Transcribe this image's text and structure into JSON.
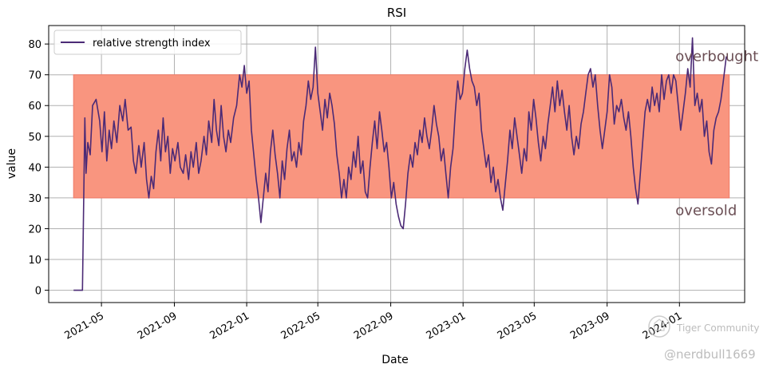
{
  "chart_data": {
    "type": "line",
    "title": "RSI",
    "xlabel": "Date",
    "ylabel": "value",
    "ylim": [
      -4,
      86
    ],
    "xlim": [
      "2021-02-01",
      "2024-04-20"
    ],
    "yticks": [
      0,
      10,
      20,
      30,
      40,
      50,
      60,
      70,
      80
    ],
    "xticks": [
      "2021-05",
      "2021-09",
      "2022-01",
      "2022-05",
      "2022-09",
      "2023-01",
      "2023-05",
      "2023-09",
      "2024-01"
    ],
    "grid": true,
    "legend": {
      "placement": "top-left",
      "entries": [
        "relative strength index"
      ]
    },
    "band": {
      "lower": 30,
      "upper": 70,
      "x_start": "2021-03-15",
      "x_end": "2024-03-25",
      "color": "#f9957f"
    },
    "annotations": [
      {
        "text": "overbought",
        "x": "2024-01-01",
        "y": 76
      },
      {
        "text": "oversold",
        "x": "2024-01-01",
        "y": 26
      }
    ],
    "series": [
      {
        "name": "relative strength index",
        "color": "#4b2a76",
        "points": [
          [
            "2021-03-15",
            0
          ],
          [
            "2021-03-30",
            0
          ],
          [
            "2021-04-03",
            56
          ],
          [
            "2021-04-05",
            38
          ],
          [
            "2021-04-08",
            48
          ],
          [
            "2021-04-12",
            44
          ],
          [
            "2021-04-16",
            60
          ],
          [
            "2021-04-22",
            62
          ],
          [
            "2021-04-28",
            55
          ],
          [
            "2021-05-02",
            45
          ],
          [
            "2021-05-06",
            58
          ],
          [
            "2021-05-10",
            42
          ],
          [
            "2021-05-14",
            52
          ],
          [
            "2021-05-18",
            46
          ],
          [
            "2021-05-22",
            55
          ],
          [
            "2021-05-27",
            48
          ],
          [
            "2021-06-01",
            60
          ],
          [
            "2021-06-06",
            55
          ],
          [
            "2021-06-10",
            62
          ],
          [
            "2021-06-15",
            52
          ],
          [
            "2021-06-20",
            53
          ],
          [
            "2021-06-24",
            42
          ],
          [
            "2021-06-28",
            38
          ],
          [
            "2021-07-03",
            47
          ],
          [
            "2021-07-07",
            40
          ],
          [
            "2021-07-12",
            48
          ],
          [
            "2021-07-16",
            36
          ],
          [
            "2021-07-20",
            30
          ],
          [
            "2021-07-24",
            37
          ],
          [
            "2021-07-28",
            33
          ],
          [
            "2021-08-01",
            45
          ],
          [
            "2021-08-05",
            52
          ],
          [
            "2021-08-09",
            42
          ],
          [
            "2021-08-13",
            56
          ],
          [
            "2021-08-17",
            45
          ],
          [
            "2021-08-21",
            50
          ],
          [
            "2021-08-25",
            38
          ],
          [
            "2021-08-29",
            46
          ],
          [
            "2021-09-02",
            42
          ],
          [
            "2021-09-07",
            48
          ],
          [
            "2021-09-11",
            40
          ],
          [
            "2021-09-16",
            38
          ],
          [
            "2021-09-20",
            44
          ],
          [
            "2021-09-25",
            36
          ],
          [
            "2021-09-29",
            45
          ],
          [
            "2021-10-03",
            40
          ],
          [
            "2021-10-08",
            48
          ],
          [
            "2021-10-12",
            38
          ],
          [
            "2021-10-16",
            42
          ],
          [
            "2021-10-21",
            50
          ],
          [
            "2021-10-25",
            44
          ],
          [
            "2021-10-29",
            55
          ],
          [
            "2021-11-03",
            48
          ],
          [
            "2021-11-07",
            62
          ],
          [
            "2021-11-11",
            52
          ],
          [
            "2021-11-15",
            47
          ],
          [
            "2021-11-19",
            60
          ],
          [
            "2021-11-23",
            50
          ],
          [
            "2021-11-27",
            45
          ],
          [
            "2021-12-01",
            52
          ],
          [
            "2021-12-05",
            48
          ],
          [
            "2021-12-10",
            56
          ],
          [
            "2021-12-15",
            60
          ],
          [
            "2021-12-20",
            70
          ],
          [
            "2021-12-24",
            66
          ],
          [
            "2021-12-28",
            73
          ],
          [
            "2022-01-01",
            64
          ],
          [
            "2022-01-05",
            68
          ],
          [
            "2022-01-09",
            52
          ],
          [
            "2022-01-13",
            44
          ],
          [
            "2022-01-17",
            36
          ],
          [
            "2022-01-21",
            30
          ],
          [
            "2022-01-25",
            22
          ],
          [
            "2022-01-29",
            30
          ],
          [
            "2022-02-02",
            38
          ],
          [
            "2022-02-06",
            32
          ],
          [
            "2022-02-10",
            45
          ],
          [
            "2022-02-14",
            52
          ],
          [
            "2022-02-18",
            44
          ],
          [
            "2022-02-22",
            38
          ],
          [
            "2022-02-26",
            30
          ],
          [
            "2022-03-02",
            42
          ],
          [
            "2022-03-06",
            36
          ],
          [
            "2022-03-10",
            46
          ],
          [
            "2022-03-14",
            52
          ],
          [
            "2022-03-18",
            42
          ],
          [
            "2022-03-22",
            45
          ],
          [
            "2022-03-26",
            40
          ],
          [
            "2022-03-30",
            48
          ],
          [
            "2022-04-03",
            44
          ],
          [
            "2022-04-07",
            55
          ],
          [
            "2022-04-11",
            60
          ],
          [
            "2022-04-15",
            68
          ],
          [
            "2022-04-19",
            62
          ],
          [
            "2022-04-23",
            66
          ],
          [
            "2022-04-27",
            79
          ],
          [
            "2022-05-01",
            64
          ],
          [
            "2022-05-05",
            58
          ],
          [
            "2022-05-09",
            52
          ],
          [
            "2022-05-13",
            62
          ],
          [
            "2022-05-17",
            56
          ],
          [
            "2022-05-21",
            64
          ],
          [
            "2022-05-25",
            60
          ],
          [
            "2022-05-29",
            54
          ],
          [
            "2022-06-02",
            44
          ],
          [
            "2022-06-06",
            38
          ],
          [
            "2022-06-10",
            30
          ],
          [
            "2022-06-14",
            36
          ],
          [
            "2022-06-18",
            30
          ],
          [
            "2022-06-22",
            40
          ],
          [
            "2022-06-26",
            36
          ],
          [
            "2022-06-30",
            45
          ],
          [
            "2022-07-04",
            40
          ],
          [
            "2022-07-08",
            50
          ],
          [
            "2022-07-12",
            38
          ],
          [
            "2022-07-16",
            42
          ],
          [
            "2022-07-20",
            32
          ],
          [
            "2022-07-24",
            30
          ],
          [
            "2022-07-28",
            40
          ],
          [
            "2022-08-01",
            48
          ],
          [
            "2022-08-05",
            55
          ],
          [
            "2022-08-09",
            46
          ],
          [
            "2022-08-13",
            58
          ],
          [
            "2022-08-17",
            52
          ],
          [
            "2022-08-21",
            45
          ],
          [
            "2022-08-25",
            48
          ],
          [
            "2022-08-29",
            40
          ],
          [
            "2022-09-02",
            30
          ],
          [
            "2022-09-06",
            35
          ],
          [
            "2022-09-10",
            28
          ],
          [
            "2022-09-14",
            24
          ],
          [
            "2022-09-18",
            21
          ],
          [
            "2022-09-22",
            20
          ],
          [
            "2022-09-26",
            28
          ],
          [
            "2022-09-30",
            38
          ],
          [
            "2022-10-04",
            44
          ],
          [
            "2022-10-08",
            40
          ],
          [
            "2022-10-12",
            48
          ],
          [
            "2022-10-16",
            44
          ],
          [
            "2022-10-20",
            52
          ],
          [
            "2022-10-24",
            48
          ],
          [
            "2022-10-28",
            56
          ],
          [
            "2022-11-01",
            50
          ],
          [
            "2022-11-05",
            46
          ],
          [
            "2022-11-09",
            52
          ],
          [
            "2022-11-13",
            60
          ],
          [
            "2022-11-17",
            54
          ],
          [
            "2022-11-21",
            50
          ],
          [
            "2022-11-25",
            42
          ],
          [
            "2022-11-29",
            46
          ],
          [
            "2022-12-03",
            38
          ],
          [
            "2022-12-07",
            30
          ],
          [
            "2022-12-11",
            40
          ],
          [
            "2022-12-15",
            46
          ],
          [
            "2022-12-19",
            58
          ],
          [
            "2022-12-23",
            68
          ],
          [
            "2022-12-27",
            62
          ],
          [
            "2022-12-31",
            64
          ],
          [
            "2023-01-04",
            72
          ],
          [
            "2023-01-08",
            78
          ],
          [
            "2023-01-12",
            72
          ],
          [
            "2023-01-16",
            68
          ],
          [
            "2023-01-20",
            66
          ],
          [
            "2023-01-24",
            60
          ],
          [
            "2023-01-28",
            64
          ],
          [
            "2023-02-01",
            52
          ],
          [
            "2023-02-05",
            46
          ],
          [
            "2023-02-09",
            40
          ],
          [
            "2023-02-13",
            44
          ],
          [
            "2023-02-17",
            35
          ],
          [
            "2023-02-21",
            40
          ],
          [
            "2023-02-25",
            32
          ],
          [
            "2023-03-01",
            36
          ],
          [
            "2023-03-05",
            30
          ],
          [
            "2023-03-09",
            26
          ],
          [
            "2023-03-13",
            34
          ],
          [
            "2023-03-17",
            42
          ],
          [
            "2023-03-21",
            52
          ],
          [
            "2023-03-25",
            46
          ],
          [
            "2023-03-29",
            56
          ],
          [
            "2023-04-02",
            50
          ],
          [
            "2023-04-06",
            44
          ],
          [
            "2023-04-10",
            38
          ],
          [
            "2023-04-14",
            46
          ],
          [
            "2023-04-18",
            42
          ],
          [
            "2023-04-22",
            58
          ],
          [
            "2023-04-26",
            52
          ],
          [
            "2023-04-30",
            62
          ],
          [
            "2023-05-04",
            56
          ],
          [
            "2023-05-08",
            48
          ],
          [
            "2023-05-12",
            42
          ],
          [
            "2023-05-16",
            50
          ],
          [
            "2023-05-20",
            46
          ],
          [
            "2023-05-24",
            54
          ],
          [
            "2023-05-28",
            60
          ],
          [
            "2023-06-01",
            66
          ],
          [
            "2023-06-05",
            58
          ],
          [
            "2023-06-09",
            68
          ],
          [
            "2023-06-13",
            60
          ],
          [
            "2023-06-17",
            65
          ],
          [
            "2023-06-21",
            58
          ],
          [
            "2023-06-25",
            52
          ],
          [
            "2023-06-29",
            60
          ],
          [
            "2023-07-03",
            50
          ],
          [
            "2023-07-07",
            44
          ],
          [
            "2023-07-11",
            50
          ],
          [
            "2023-07-15",
            46
          ],
          [
            "2023-07-19",
            54
          ],
          [
            "2023-07-23",
            58
          ],
          [
            "2023-07-27",
            64
          ],
          [
            "2023-07-31",
            70
          ],
          [
            "2023-08-04",
            72
          ],
          [
            "2023-08-08",
            66
          ],
          [
            "2023-08-12",
            70
          ],
          [
            "2023-08-16",
            60
          ],
          [
            "2023-08-20",
            52
          ],
          [
            "2023-08-24",
            46
          ],
          [
            "2023-08-28",
            52
          ],
          [
            "2023-09-01",
            58
          ],
          [
            "2023-09-05",
            70
          ],
          [
            "2023-09-09",
            66
          ],
          [
            "2023-09-13",
            54
          ],
          [
            "2023-09-17",
            60
          ],
          [
            "2023-09-21",
            58
          ],
          [
            "2023-09-25",
            62
          ],
          [
            "2023-09-29",
            56
          ],
          [
            "2023-10-03",
            52
          ],
          [
            "2023-10-07",
            58
          ],
          [
            "2023-10-11",
            50
          ],
          [
            "2023-10-15",
            40
          ],
          [
            "2023-10-19",
            33
          ],
          [
            "2023-10-23",
            28
          ],
          [
            "2023-10-27",
            38
          ],
          [
            "2023-10-31",
            48
          ],
          [
            "2023-11-04",
            58
          ],
          [
            "2023-11-08",
            62
          ],
          [
            "2023-11-12",
            58
          ],
          [
            "2023-11-16",
            66
          ],
          [
            "2023-11-20",
            60
          ],
          [
            "2023-11-24",
            64
          ],
          [
            "2023-11-28",
            58
          ],
          [
            "2023-12-02",
            70
          ],
          [
            "2023-12-06",
            62
          ],
          [
            "2023-12-10",
            68
          ],
          [
            "2023-12-14",
            70
          ],
          [
            "2023-12-18",
            64
          ],
          [
            "2023-12-22",
            70
          ],
          [
            "2023-12-26",
            68
          ],
          [
            "2023-12-30",
            60
          ],
          [
            "2024-01-03",
            52
          ],
          [
            "2024-01-07",
            58
          ],
          [
            "2024-01-11",
            64
          ],
          [
            "2024-01-15",
            72
          ],
          [
            "2024-01-19",
            66
          ],
          [
            "2024-01-23",
            82
          ],
          [
            "2024-01-27",
            60
          ],
          [
            "2024-01-31",
            64
          ],
          [
            "2024-02-04",
            58
          ],
          [
            "2024-02-08",
            62
          ],
          [
            "2024-02-12",
            50
          ],
          [
            "2024-02-16",
            55
          ],
          [
            "2024-02-20",
            45
          ],
          [
            "2024-02-24",
            41
          ],
          [
            "2024-02-28",
            52
          ],
          [
            "2024-03-03",
            56
          ],
          [
            "2024-03-07",
            58
          ],
          [
            "2024-03-11",
            62
          ],
          [
            "2024-03-15",
            68
          ],
          [
            "2024-03-20",
            76
          ]
        ]
      }
    ]
  },
  "watermark": {
    "line1": "Tiger Community",
    "line2": "@nerdbull1669"
  }
}
